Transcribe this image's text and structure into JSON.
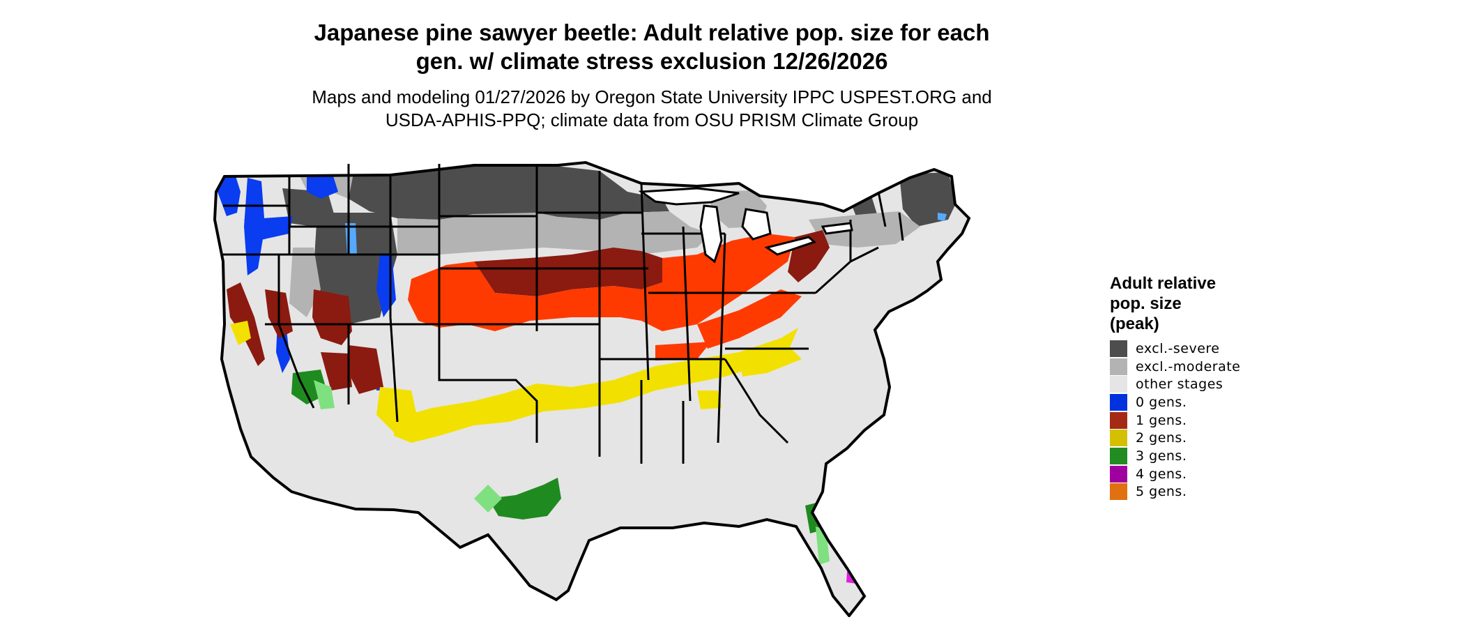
{
  "title": {
    "line1": "Japanese pine sawyer beetle: Adult relative pop. size for each",
    "line2": "gen. w/ climate stress exclusion 12/26/2026"
  },
  "subtitle": {
    "line1": "Maps and modeling 01/27/2026 by Oregon State University IPPC USPEST.ORG and",
    "line2": "USDA-APHIS-PPQ; climate data from OSU PRISM Climate Group"
  },
  "legend": {
    "title_line1": "Adult relative",
    "title_line2": "pop. size",
    "title_line3": "(peak)",
    "items": [
      {
        "label": "excl.-severe",
        "color": "#4d4d4d"
      },
      {
        "label": "excl.-moderate",
        "color": "#b3b3b3"
      },
      {
        "label": "other stages",
        "color": "#e5e5e5"
      },
      {
        "label": "0 gens.",
        "color": "#0033dd"
      },
      {
        "label": "1 gens.",
        "color": "#a52a16"
      },
      {
        "label": "2 gens.",
        "color": "#d4c000"
      },
      {
        "label": "3 gens.",
        "color": "#228b22"
      },
      {
        "label": "4 gens.",
        "color": "#a000a0"
      },
      {
        "label": "5 gens.",
        "color": "#e07010"
      }
    ]
  },
  "map": {
    "base_color": "#e5e5e5",
    "border_color": "#000000",
    "region_colors": {
      "severe": "#4d4d4d",
      "moderate": "#b3b3b3",
      "gen0": "#0a3cf0",
      "gen0_light": "#55aaff",
      "gen1_dark": "#8b1a10",
      "gen1_bright": "#ff3a00",
      "gen2": "#f2e100",
      "gen2_dark": "#d4c000",
      "gen3": "#1f8a1f",
      "gen3_light": "#7fe07f",
      "gen4": "#e020e0"
    }
  }
}
